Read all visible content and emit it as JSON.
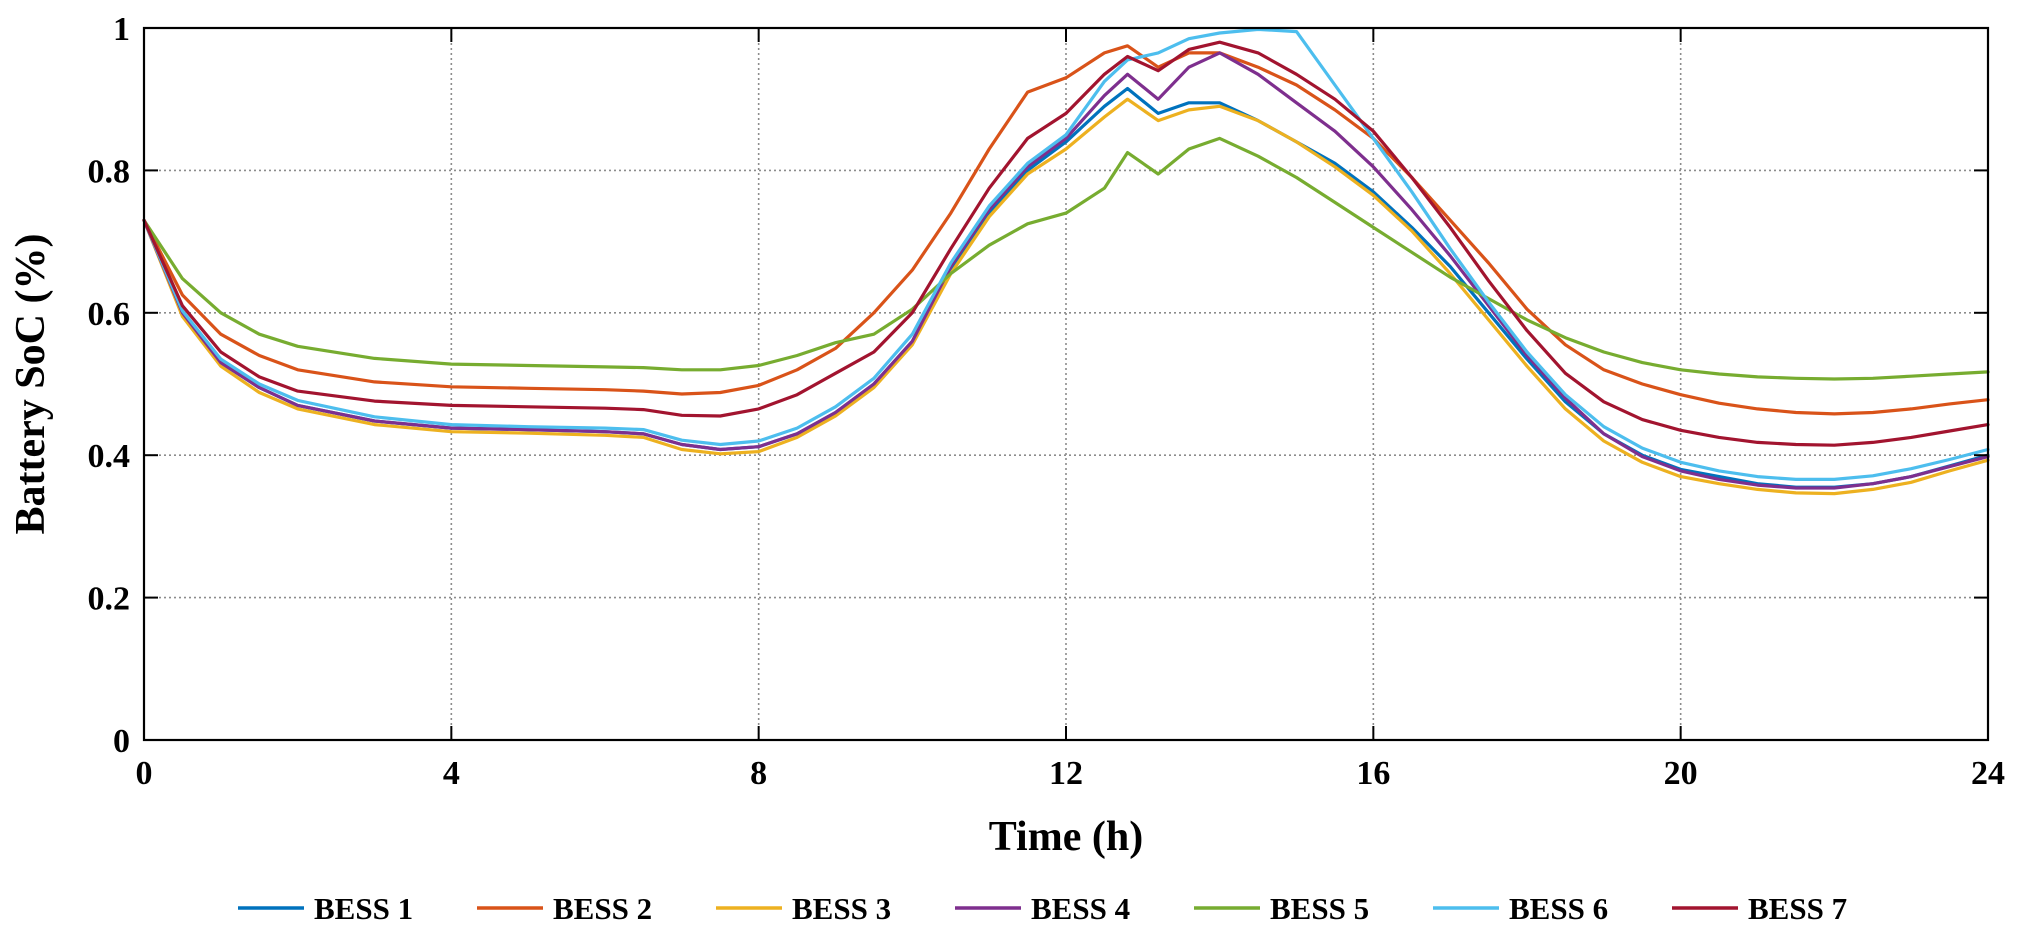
{
  "chart_data": {
    "type": "line",
    "title": "",
    "xlabel": "Time (h)",
    "ylabel": "Battery SoC (%)",
    "xlim": [
      0,
      24
    ],
    "ylim": [
      0,
      1
    ],
    "grid": true,
    "legend_position": "bottom",
    "xticks": [
      0,
      4,
      8,
      12,
      16,
      20,
      24
    ],
    "xtick_labels": [
      "0",
      "4",
      "8",
      "12",
      "16",
      "20",
      "24"
    ],
    "yticks": [
      0,
      0.2,
      0.4,
      0.6,
      0.8,
      1
    ],
    "ytick_labels": [
      "0",
      "0.2",
      "0.4",
      "0.6",
      "0.8",
      "1"
    ],
    "series": [
      {
        "name": "BESS 1",
        "color": "#0072BD",
        "x": [
          0,
          0.5,
          1,
          1.5,
          2,
          3,
          4,
          5,
          6,
          6.5,
          7,
          7.5,
          8,
          8.5,
          9,
          9.5,
          10,
          10.5,
          11,
          11.5,
          12,
          12.5,
          12.8,
          13.2,
          13.6,
          14,
          14.5,
          15,
          15.5,
          16,
          16.5,
          17,
          17.5,
          18,
          18.5,
          19,
          19.5,
          20,
          20.5,
          21,
          21.5,
          22,
          22.5,
          23,
          23.5,
          24
        ],
        "values": [
          0.73,
          0.6,
          0.53,
          0.495,
          0.47,
          0.448,
          0.438,
          0.436,
          0.433,
          0.43,
          0.415,
          0.408,
          0.412,
          0.43,
          0.46,
          0.5,
          0.56,
          0.66,
          0.74,
          0.8,
          0.84,
          0.89,
          0.915,
          0.88,
          0.895,
          0.895,
          0.87,
          0.84,
          0.81,
          0.77,
          0.72,
          0.665,
          0.6,
          0.535,
          0.475,
          0.43,
          0.4,
          0.38,
          0.37,
          0.36,
          0.355,
          0.355,
          0.36,
          0.37,
          0.385,
          0.4
        ]
      },
      {
        "name": "BESS 2",
        "color": "#D95319",
        "x": [
          0,
          0.5,
          1,
          1.5,
          2,
          3,
          4,
          5,
          6,
          6.5,
          7,
          7.5,
          8,
          8.5,
          9,
          9.5,
          10,
          10.5,
          11,
          11.5,
          12,
          12.5,
          12.8,
          13.2,
          13.6,
          14,
          14.5,
          15,
          15.5,
          16,
          16.5,
          17,
          17.5,
          18,
          18.5,
          19,
          19.5,
          20,
          20.5,
          21,
          21.5,
          22,
          22.5,
          23,
          23.5,
          24
        ],
        "values": [
          0.73,
          0.625,
          0.57,
          0.54,
          0.52,
          0.503,
          0.496,
          0.494,
          0.492,
          0.49,
          0.486,
          0.488,
          0.498,
          0.52,
          0.55,
          0.6,
          0.66,
          0.74,
          0.83,
          0.91,
          0.93,
          0.965,
          0.975,
          0.945,
          0.965,
          0.965,
          0.945,
          0.92,
          0.885,
          0.845,
          0.79,
          0.73,
          0.67,
          0.605,
          0.555,
          0.52,
          0.5,
          0.485,
          0.473,
          0.465,
          0.46,
          0.458,
          0.46,
          0.465,
          0.472,
          0.478
        ]
      },
      {
        "name": "BESS 3",
        "color": "#EDB120",
        "x": [
          0,
          0.5,
          1,
          1.5,
          2,
          3,
          4,
          5,
          6,
          6.5,
          7,
          7.5,
          8,
          8.5,
          9,
          9.5,
          10,
          10.5,
          11,
          11.5,
          12,
          12.5,
          12.8,
          13.2,
          13.6,
          14,
          14.5,
          15,
          15.5,
          16,
          16.5,
          17,
          17.5,
          18,
          18.5,
          19,
          19.5,
          20,
          20.5,
          21,
          21.5,
          22,
          22.5,
          23,
          23.5,
          24
        ],
        "values": [
          0.73,
          0.595,
          0.525,
          0.488,
          0.465,
          0.443,
          0.433,
          0.431,
          0.428,
          0.425,
          0.408,
          0.402,
          0.405,
          0.425,
          0.455,
          0.495,
          0.555,
          0.655,
          0.735,
          0.795,
          0.83,
          0.875,
          0.9,
          0.87,
          0.885,
          0.89,
          0.87,
          0.84,
          0.805,
          0.765,
          0.715,
          0.655,
          0.59,
          0.525,
          0.465,
          0.42,
          0.39,
          0.37,
          0.36,
          0.352,
          0.347,
          0.346,
          0.352,
          0.362,
          0.378,
          0.393
        ]
      },
      {
        "name": "BESS 4",
        "color": "#7E2F8E",
        "x": [
          0,
          0.5,
          1,
          1.5,
          2,
          3,
          4,
          5,
          6,
          6.5,
          7,
          7.5,
          8,
          8.5,
          9,
          9.5,
          10,
          10.5,
          11,
          11.5,
          12,
          12.5,
          12.8,
          13.2,
          13.6,
          14,
          14.5,
          15,
          15.5,
          16,
          16.5,
          17,
          17.5,
          18,
          18.5,
          19,
          19.5,
          20,
          20.5,
          21,
          21.5,
          22,
          22.5,
          23,
          23.5,
          24
        ],
        "values": [
          0.73,
          0.6,
          0.53,
          0.495,
          0.47,
          0.448,
          0.438,
          0.436,
          0.433,
          0.43,
          0.415,
          0.408,
          0.412,
          0.43,
          0.46,
          0.5,
          0.56,
          0.665,
          0.745,
          0.805,
          0.845,
          0.905,
          0.935,
          0.9,
          0.945,
          0.965,
          0.935,
          0.895,
          0.855,
          0.805,
          0.745,
          0.68,
          0.61,
          0.54,
          0.48,
          0.43,
          0.398,
          0.378,
          0.366,
          0.358,
          0.354,
          0.354,
          0.36,
          0.37,
          0.384,
          0.398
        ]
      },
      {
        "name": "BESS 5",
        "color": "#77AC30",
        "x": [
          0,
          0.5,
          1,
          1.5,
          2,
          3,
          4,
          5,
          6,
          6.5,
          7,
          7.5,
          8,
          8.5,
          9,
          9.5,
          10,
          10.5,
          11,
          11.5,
          12,
          12.5,
          12.8,
          13.2,
          13.6,
          14,
          14.5,
          15,
          15.5,
          16,
          16.5,
          17,
          17.5,
          18,
          18.5,
          19,
          19.5,
          20,
          20.5,
          21,
          21.5,
          22,
          22.5,
          23,
          23.5,
          24
        ],
        "values": [
          0.73,
          0.648,
          0.6,
          0.57,
          0.553,
          0.536,
          0.528,
          0.526,
          0.524,
          0.523,
          0.52,
          0.52,
          0.526,
          0.54,
          0.558,
          0.57,
          0.605,
          0.655,
          0.695,
          0.725,
          0.74,
          0.775,
          0.825,
          0.795,
          0.83,
          0.845,
          0.82,
          0.79,
          0.755,
          0.72,
          0.685,
          0.65,
          0.62,
          0.59,
          0.565,
          0.545,
          0.53,
          0.52,
          0.514,
          0.51,
          0.508,
          0.507,
          0.508,
          0.511,
          0.514,
          0.517
        ]
      },
      {
        "name": "BESS 6",
        "color": "#4DBEEE",
        "x": [
          0,
          0.5,
          1,
          1.5,
          2,
          3,
          4,
          5,
          6,
          6.5,
          7,
          7.5,
          8,
          8.5,
          9,
          9.5,
          10,
          10.5,
          11,
          11.5,
          12,
          12.5,
          12.8,
          13.2,
          13.6,
          14,
          14.5,
          15,
          15.5,
          16,
          16.5,
          17,
          17.5,
          18,
          18.5,
          19,
          19.5,
          20,
          20.5,
          21,
          21.5,
          22,
          22.5,
          23,
          23.5,
          24
        ],
        "values": [
          0.73,
          0.603,
          0.535,
          0.5,
          0.477,
          0.454,
          0.443,
          0.44,
          0.438,
          0.436,
          0.421,
          0.415,
          0.42,
          0.438,
          0.468,
          0.508,
          0.57,
          0.67,
          0.75,
          0.81,
          0.85,
          0.925,
          0.955,
          0.965,
          0.985,
          0.993,
          0.998,
          0.995,
          0.92,
          0.845,
          0.77,
          0.69,
          0.615,
          0.545,
          0.485,
          0.44,
          0.41,
          0.39,
          0.378,
          0.37,
          0.366,
          0.366,
          0.371,
          0.381,
          0.394,
          0.408
        ]
      },
      {
        "name": "BESS 7",
        "color": "#A2142F",
        "x": [
          0,
          0.5,
          1,
          1.5,
          2,
          3,
          4,
          5,
          6,
          6.5,
          7,
          7.5,
          8,
          8.5,
          9,
          9.5,
          10,
          10.5,
          11,
          11.5,
          12,
          12.5,
          12.8,
          13.2,
          13.6,
          14,
          14.5,
          15,
          15.5,
          16,
          16.5,
          17,
          17.5,
          18,
          18.5,
          19,
          19.5,
          20,
          20.5,
          21,
          21.5,
          22,
          22.5,
          23,
          23.5,
          24
        ],
        "values": [
          0.73,
          0.61,
          0.545,
          0.51,
          0.49,
          0.476,
          0.47,
          0.468,
          0.466,
          0.464,
          0.456,
          0.455,
          0.465,
          0.485,
          0.515,
          0.545,
          0.6,
          0.69,
          0.775,
          0.845,
          0.88,
          0.935,
          0.96,
          0.94,
          0.97,
          0.98,
          0.965,
          0.935,
          0.9,
          0.855,
          0.79,
          0.72,
          0.645,
          0.575,
          0.515,
          0.475,
          0.45,
          0.435,
          0.425,
          0.418,
          0.415,
          0.414,
          0.418,
          0.425,
          0.434,
          0.443
        ]
      }
    ]
  }
}
